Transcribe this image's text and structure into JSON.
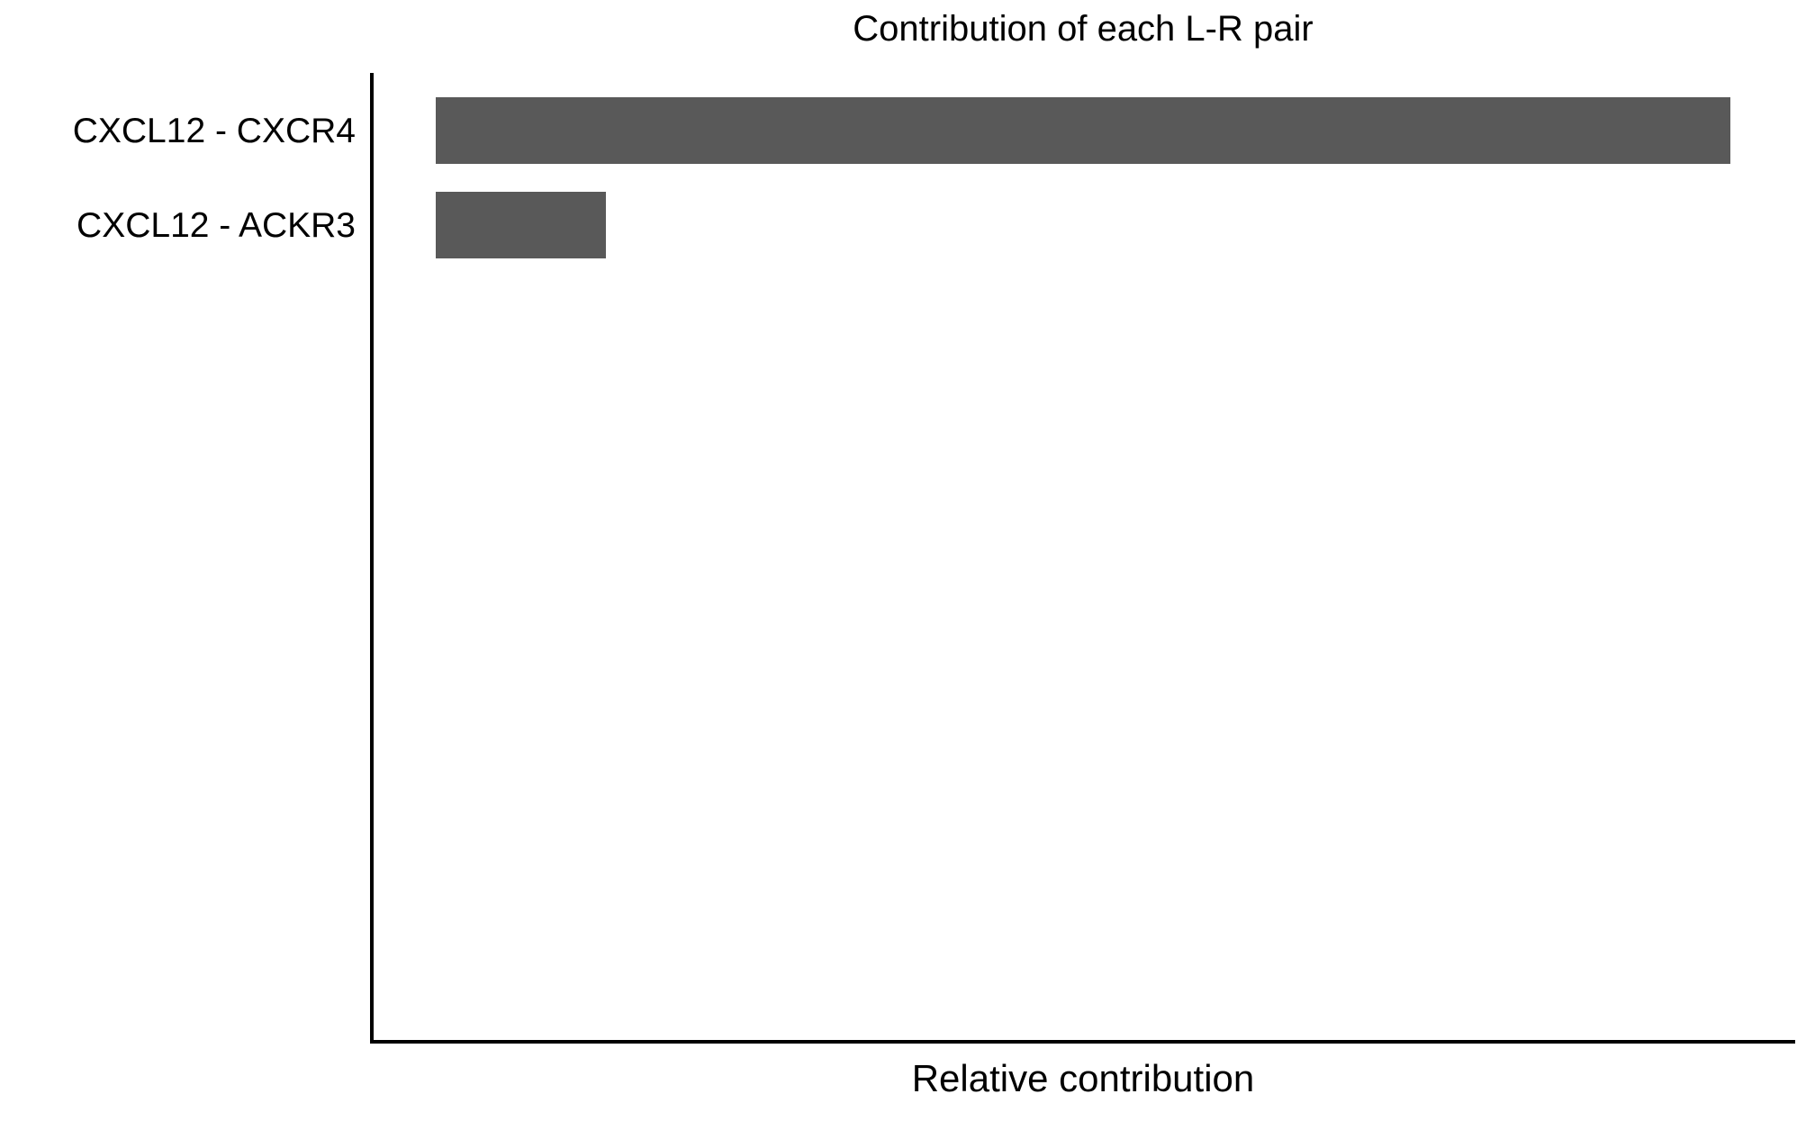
{
  "chart_data": {
    "type": "bar",
    "orientation": "horizontal",
    "title": "Contribution of each L-R pair",
    "xlabel": "Relative contribution",
    "ylabel": "",
    "categories": [
      "CXCL12 - CXCR4",
      "CXCL12 - ACKR3"
    ],
    "values": [
      0.884,
      0.116
    ],
    "grid": false,
    "legend": false,
    "bar_color": "#595959",
    "axis_color": "#000000",
    "text_color": "#000000",
    "background_color": "#FFFFFF"
  }
}
